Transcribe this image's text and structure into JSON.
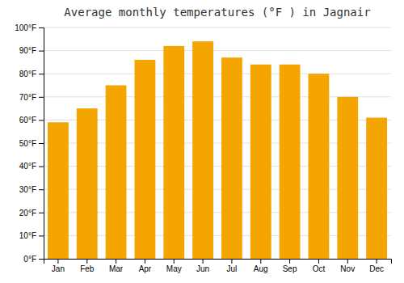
{
  "chart_data": {
    "type": "bar",
    "title": "Average monthly temperatures (°F ) in Jagnair",
    "categories": [
      "Jan",
      "Feb",
      "Mar",
      "Apr",
      "May",
      "Jun",
      "Jul",
      "Aug",
      "Sep",
      "Oct",
      "Nov",
      "Dec"
    ],
    "values": [
      59,
      65,
      75,
      86,
      92,
      94,
      87,
      84,
      84,
      80,
      70,
      61
    ],
    "color": "#F5A500",
    "ylim": [
      0,
      100
    ],
    "yticks": [
      {
        "value": 0,
        "label": "0°F"
      },
      {
        "value": 10,
        "label": "10°F"
      },
      {
        "value": 20,
        "label": "20°F"
      },
      {
        "value": 30,
        "label": "30°F"
      },
      {
        "value": 40,
        "label": "40°F"
      },
      {
        "value": 50,
        "label": "50°F"
      },
      {
        "value": 60,
        "label": "60°F"
      },
      {
        "value": 70,
        "label": "70°F"
      },
      {
        "value": 80,
        "label": "80°F"
      },
      {
        "value": 90,
        "label": "90°F"
      },
      {
        "value": 100,
        "label": "100°F"
      }
    ],
    "grid": true
  }
}
